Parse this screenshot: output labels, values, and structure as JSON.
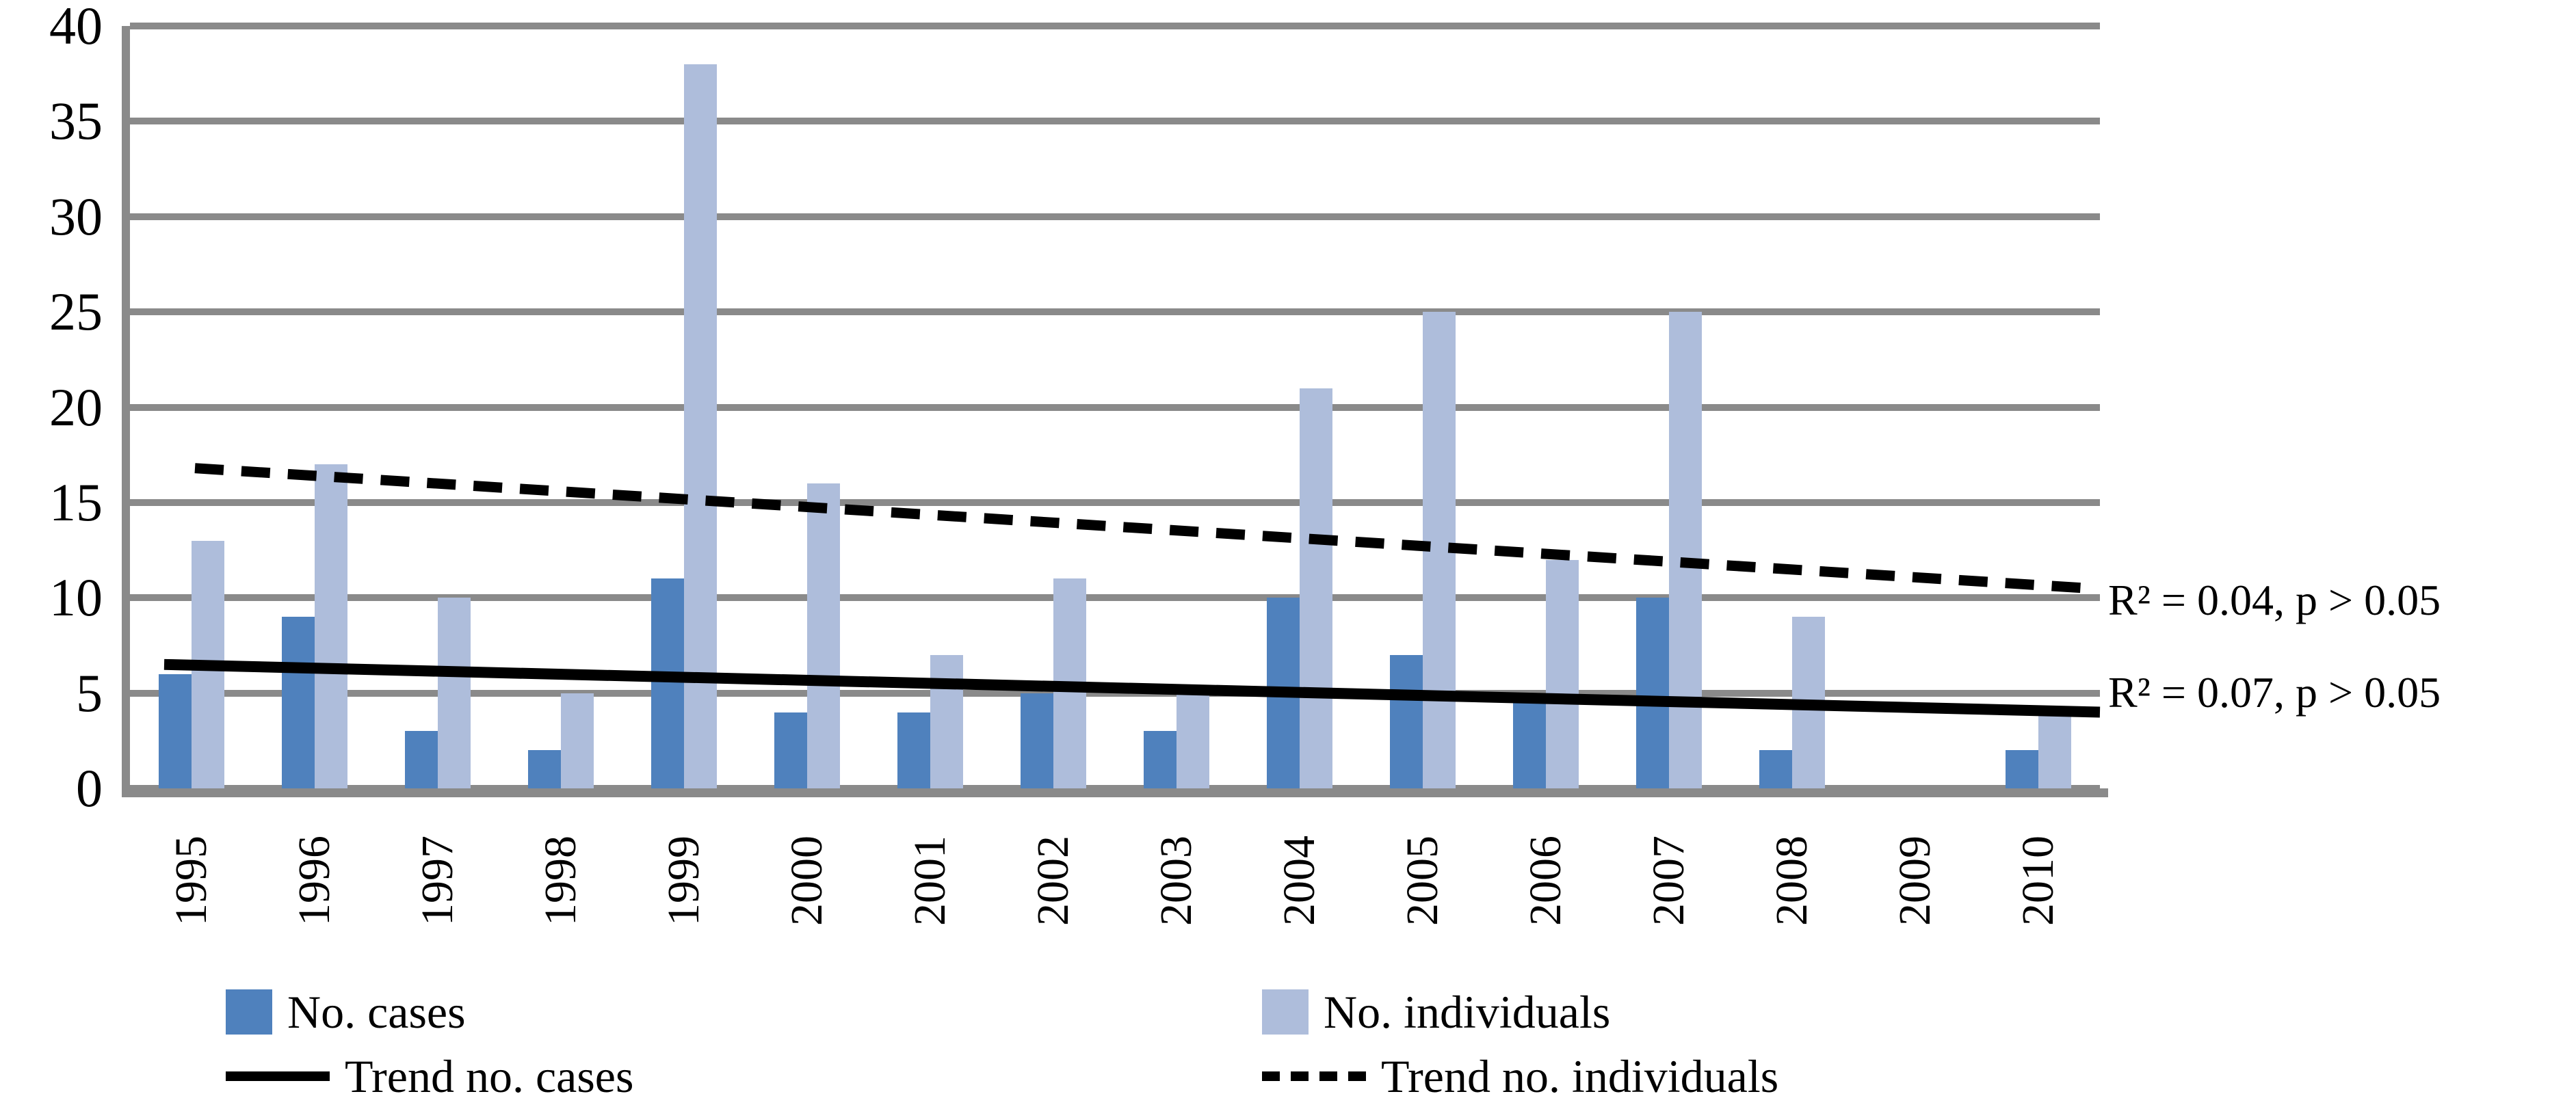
{
  "chart_data": {
    "type": "bar",
    "title": "",
    "xlabel": "",
    "ylabel": "",
    "categories": [
      "1995",
      "1996",
      "1997",
      "1998",
      "1999",
      "2000",
      "2001",
      "2002",
      "2003",
      "2004",
      "2005",
      "2006",
      "2007",
      "2008",
      "2009",
      "2010"
    ],
    "series": [
      {
        "name": "No. cases",
        "color": "#4F81BD",
        "values": [
          6,
          9,
          3,
          2,
          11,
          4,
          4,
          5,
          3,
          10,
          7,
          5,
          10,
          2,
          0,
          2
        ]
      },
      {
        "name": "No. individuals",
        "color": "#AEBDDB",
        "values": [
          13,
          17,
          10,
          5,
          38,
          16,
          7,
          11,
          5,
          21,
          25,
          12,
          25,
          9,
          0,
          4
        ]
      }
    ],
    "trendlines": [
      {
        "name": "Trend no. individuals",
        "style": "dashed",
        "color": "#000000",
        "start_value": 16.8,
        "end_value": 10.5,
        "annotation": "R² = 0.04, p > 0.05"
      },
      {
        "name": "Trend no. cases",
        "style": "solid",
        "color": "#000000",
        "start_value": 6.5,
        "end_value": 4.0,
        "annotation": "R² = 0.07, p > 0.05"
      }
    ],
    "ylim": [
      0,
      40
    ],
    "ytick_step": 5,
    "yticks": [
      40,
      35,
      30,
      25,
      20,
      15,
      10,
      5,
      0
    ],
    "grid": true,
    "gridline_color": "#8A8A8A",
    "legend_position": "bottom-two-columns",
    "background_color": "#FFFFFF"
  }
}
